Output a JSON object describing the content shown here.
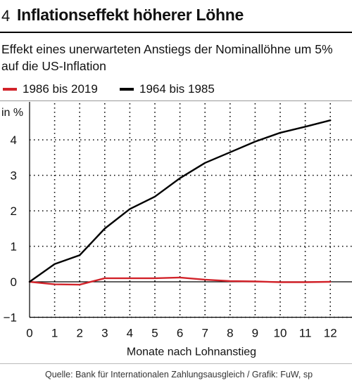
{
  "figure_number": "4",
  "title": "Inflationseffekt höherer Löhne",
  "subtitle": "Effekt eines unerwarteten Anstiegs der Nominallöhne um 5% auf die US-Inflation",
  "source": "Quelle: Bank für Internationalen Zahlungsausgleich / Grafik: FuW, sp",
  "colors": {
    "series_red": "#d2232a",
    "series_black": "#000000",
    "grid": "#000000"
  },
  "chart_data": {
    "type": "line",
    "title": "Inflationseffekt höherer Löhne",
    "xlabel": "Monate nach Lohnanstieg",
    "ylabel": "in %",
    "x": [
      0,
      1,
      2,
      3,
      4,
      5,
      6,
      7,
      8,
      9,
      10,
      11,
      12
    ],
    "xlim": [
      0,
      12.5
    ],
    "ylim": [
      -1,
      4.6
    ],
    "x_ticks": [
      0,
      1,
      2,
      3,
      4,
      5,
      6,
      7,
      8,
      9,
      10,
      11,
      12
    ],
    "y_ticks": [
      -1,
      0,
      1,
      2,
      3,
      4
    ],
    "y_tick_labels": [
      "−1",
      "0",
      "1",
      "2",
      "3",
      "4"
    ],
    "grid": true,
    "legend_position": "top-left",
    "series": [
      {
        "name": "1986 bis 2019",
        "color": "#d2232a",
        "values": [
          0,
          -0.07,
          -0.08,
          0.1,
          0.1,
          0.1,
          0.12,
          0.06,
          0.02,
          0.01,
          -0.01,
          -0.01,
          0.0
        ]
      },
      {
        "name": "1964 bis 1985",
        "color": "#000000",
        "values": [
          0,
          0.5,
          0.75,
          1.5,
          2.05,
          2.4,
          2.92,
          3.35,
          3.65,
          3.95,
          4.2,
          4.37,
          4.55
        ]
      }
    ]
  }
}
